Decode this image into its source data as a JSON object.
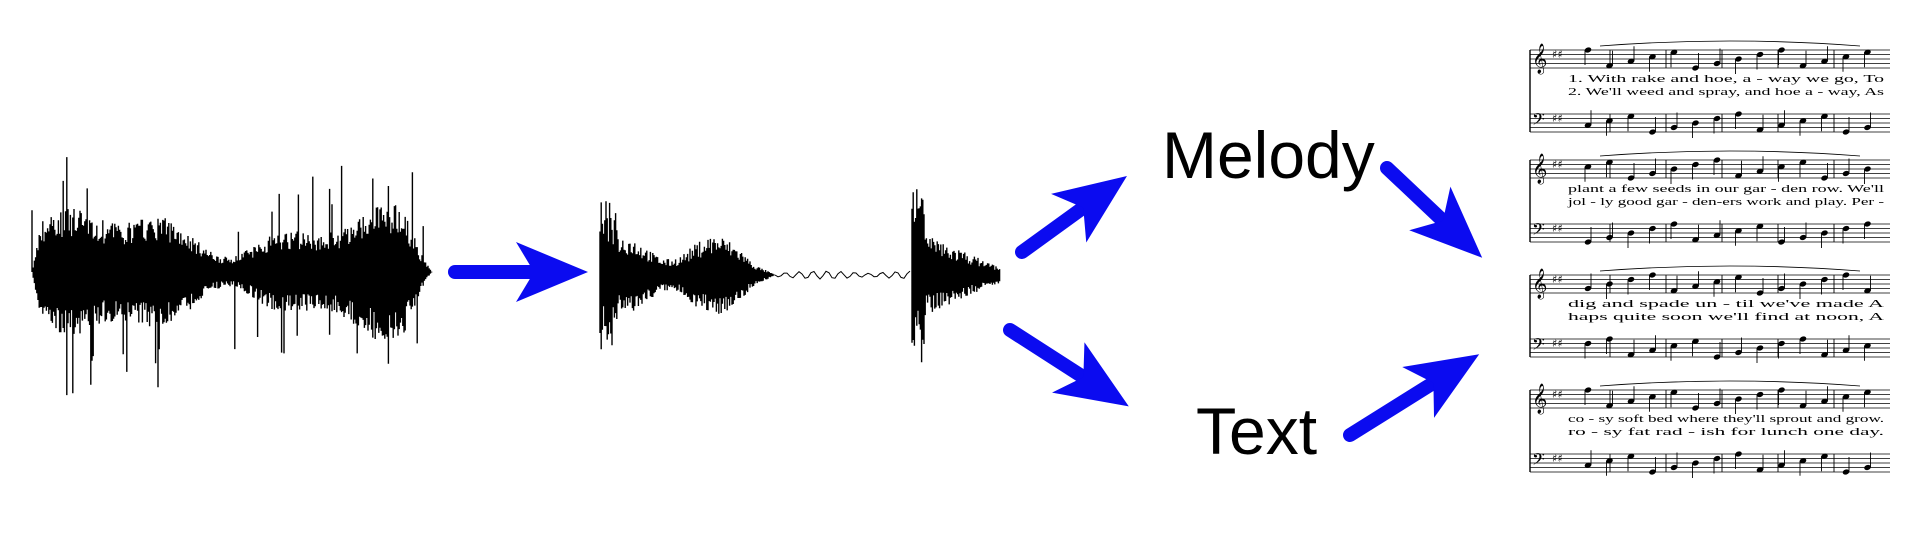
{
  "labels": {
    "melody": "Melody",
    "text": "Text"
  },
  "colors": {
    "arrow": "#0b0bf0",
    "ink": "#000000",
    "background": "#ffffff"
  },
  "score": {
    "lyrics": [
      [
        "1. With  rake  and  hoe,   a - way   we  go,   To",
        "2. We'll  weed  and  spray,  and  hoe   a - way,  As"
      ],
      [
        "plant  a  few  seeds  in  our  gar - den  row.  We'll",
        "jol - ly good  gar - den-ers  work  and  play.  Per -"
      ],
      [
        "dig   and  spade   un - til   we've  made   A",
        "haps   quite  soon   we'll  find   at  noon,   A"
      ],
      [
        "co - sy  soft   bed  where  they'll  sprout   and  grow.",
        "ro - sy  fat   rad - ish   for   lunch   one  day."
      ]
    ]
  },
  "icons": [
    "waveform-full",
    "waveform-separated",
    "sheet-music"
  ]
}
